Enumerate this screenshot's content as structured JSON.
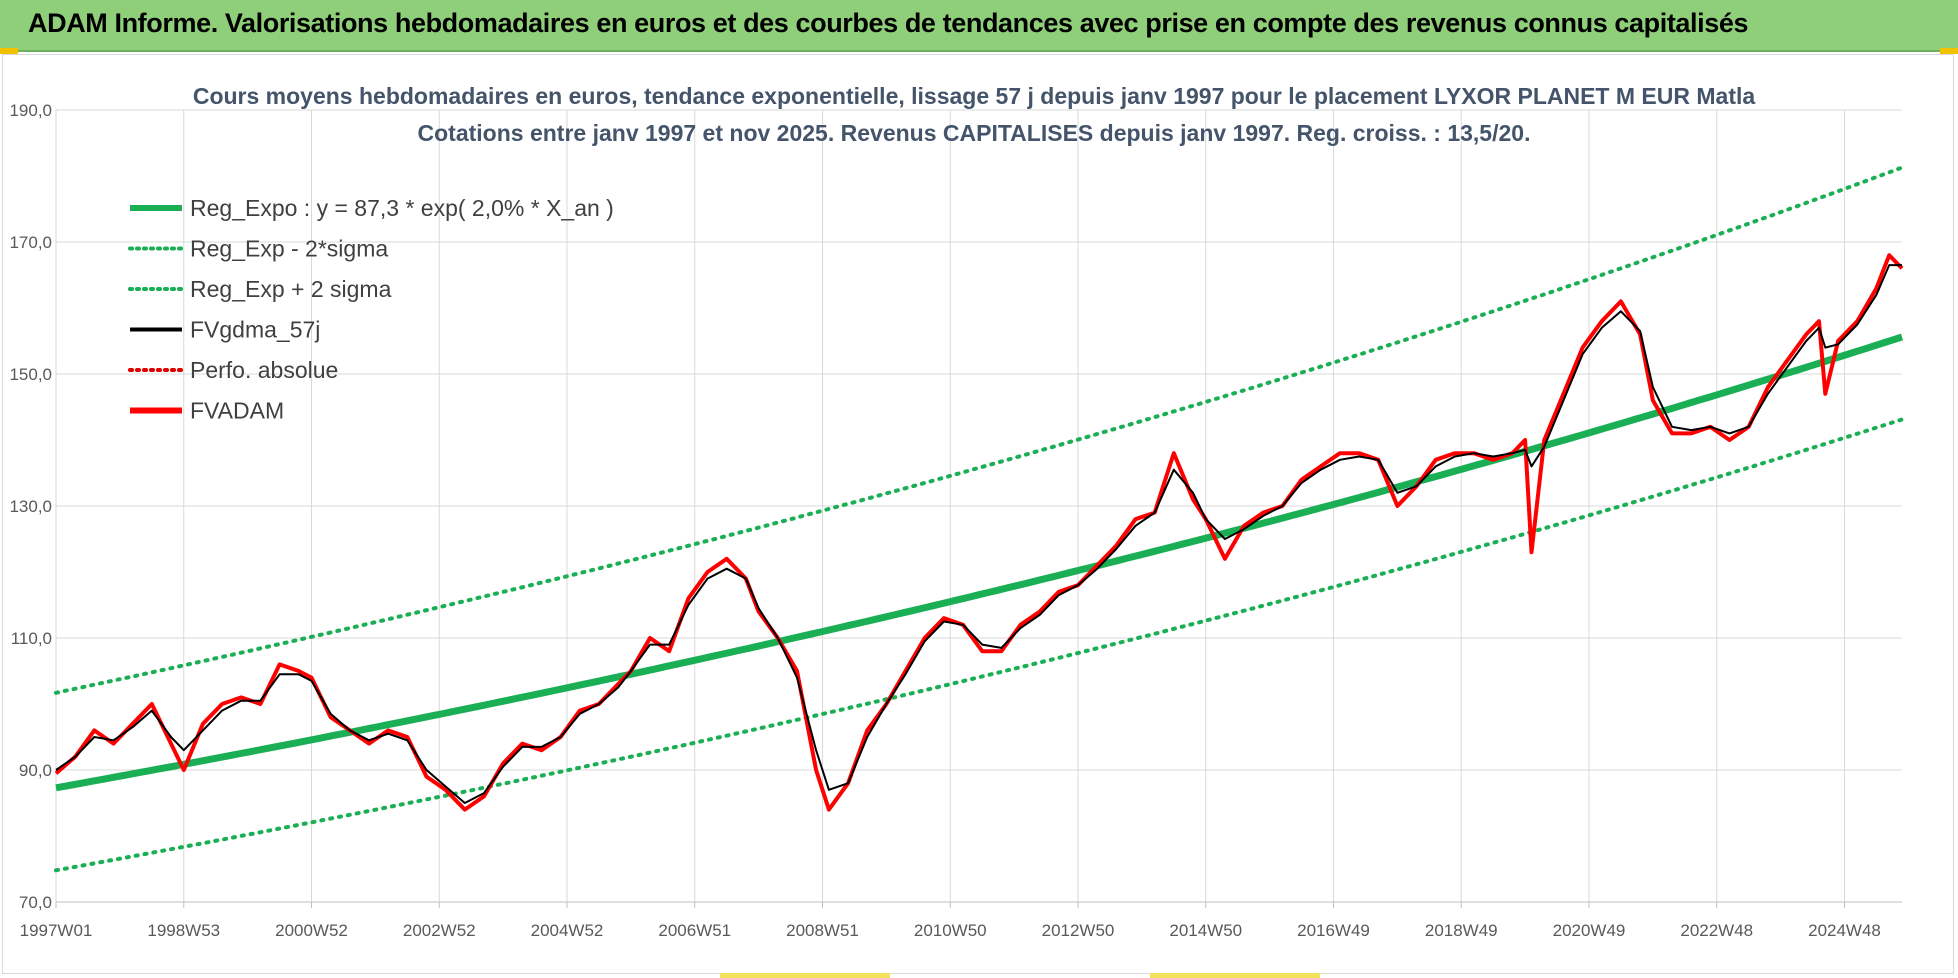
{
  "header": {
    "title": "ADAM Informe. Valorisations hebdomadaires en euros et des courbes de tendances avec prise en compte des revenus connus capitalisés"
  },
  "colors": {
    "banner": "#8fcf7a",
    "reg_expo": "#1aaf54",
    "sigma_lines": "#1aaf54",
    "fvgdma": "#000000",
    "perfo": "#e00000",
    "fvadam": "#ff0000",
    "grid": "#d9d9d9"
  },
  "chart_data": {
    "type": "line",
    "title": "Cours moyens hebdomadaires en euros, tendance exponentielle, lissage 57 j depuis janv 1997 pour le placement LYXOR PLANET M EUR Matla",
    "subtitle": "Cotations entre janv 1997 et nov 2025. Revenus CAPITALISES depuis janv 1997. Reg. croiss. : 13,5/20.",
    "xlabel": "",
    "ylabel": "",
    "ylim": [
      70,
      190
    ],
    "yticks": [
      "70,0",
      "90,0",
      "110,0",
      "130,0",
      "150,0",
      "170,0",
      "190,0"
    ],
    "ytick_values": [
      70,
      90,
      110,
      130,
      150,
      170,
      190
    ],
    "xlim": [
      1997.0,
      2025.9
    ],
    "xticks": [
      "1997W01",
      "1998W53",
      "2000W52",
      "2002W52",
      "2004W52",
      "2006W51",
      "2008W51",
      "2010W50",
      "2012W50",
      "2014W50",
      "2016W49",
      "2018W49",
      "2020W49",
      "2022W48",
      "2024W48"
    ],
    "xtick_values": [
      1997.0,
      1999.0,
      2001.0,
      2003.0,
      2005.0,
      2007.0,
      2009.0,
      2011.0,
      2013.0,
      2015.0,
      2017.0,
      2019.0,
      2021.0,
      2023.0,
      2025.0
    ],
    "grid": "both",
    "legend_position": "top-left",
    "legend": [
      {
        "label": "Reg_Expo : y = 87,3 * exp( 2,0% *  X_an )",
        "style": "solid-thick",
        "color": "#1aaf54"
      },
      {
        "label": "Reg_Exp - 2*sigma",
        "style": "dotted",
        "color": "#1aaf54"
      },
      {
        "label": "Reg_Exp + 2 sigma",
        "style": "dotted",
        "color": "#1aaf54"
      },
      {
        "label": "FVgdma_57j",
        "style": "solid",
        "color": "#000000"
      },
      {
        "label": "Perfo. absolue",
        "style": "dotted",
        "color": "#e00000"
      },
      {
        "label": "FVADAM",
        "style": "solid-thick",
        "color": "#ff0000"
      }
    ],
    "trend": {
      "base": 87.3,
      "rate": 0.02,
      "start": 1997.0,
      "sigma_offset_low": -12.5,
      "sigma_factor_up": 1.165
    },
    "series": [
      {
        "name": "FVADAM",
        "x": [
          1997.0,
          1997.3,
          1997.6,
          1997.9,
          1998.2,
          1998.5,
          1998.8,
          1999.0,
          1999.3,
          1999.6,
          1999.9,
          2000.2,
          2000.5,
          2000.8,
          2001.0,
          2001.3,
          2001.6,
          2001.9,
          2002.2,
          2002.5,
          2002.8,
          2003.1,
          2003.4,
          2003.7,
          2004.0,
          2004.3,
          2004.6,
          2004.9,
          2005.2,
          2005.5,
          2005.8,
          2006.0,
          2006.3,
          2006.6,
          2006.9,
          2007.2,
          2007.5,
          2007.8,
          2008.0,
          2008.3,
          2008.6,
          2008.9,
          2009.1,
          2009.4,
          2009.7,
          2010.0,
          2010.3,
          2010.6,
          2010.9,
          2011.2,
          2011.5,
          2011.8,
          2012.1,
          2012.4,
          2012.7,
          2013.0,
          2013.3,
          2013.6,
          2013.9,
          2014.2,
          2014.5,
          2014.8,
          2015.0,
          2015.3,
          2015.6,
          2015.9,
          2016.2,
          2016.5,
          2016.8,
          2017.1,
          2017.4,
          2017.7,
          2018.0,
          2018.3,
          2018.6,
          2018.9,
          2019.2,
          2019.5,
          2019.8,
          2020.0,
          2020.1,
          2020.3,
          2020.6,
          2020.9,
          2021.2,
          2021.5,
          2021.8,
          2022.0,
          2022.3,
          2022.6,
          2022.9,
          2023.2,
          2023.5,
          2023.8,
          2024.1,
          2024.4,
          2024.6,
          2024.7,
          2024.9,
          2025.2,
          2025.5,
          2025.7,
          2025.9
        ],
        "y": [
          89.5,
          92.0,
          96.0,
          94.0,
          97.0,
          100.0,
          94.0,
          90.0,
          97.0,
          100.0,
          101.0,
          100.0,
          106.0,
          105.0,
          104.0,
          98.0,
          96.0,
          94.0,
          96.0,
          95.0,
          89.0,
          87.0,
          84.0,
          86.0,
          91.0,
          94.0,
          93.0,
          95.0,
          99.0,
          100.0,
          103.0,
          105.0,
          110.0,
          108.0,
          116.0,
          120.0,
          122.0,
          119.0,
          114.0,
          110.0,
          105.0,
          90.0,
          84.0,
          88.0,
          96.0,
          100.0,
          105.0,
          110.0,
          113.0,
          112.0,
          108.0,
          108.0,
          112.0,
          114.0,
          117.0,
          118.0,
          121.0,
          124.0,
          128.0,
          129.0,
          138.0,
          131.0,
          128.0,
          122.0,
          127.0,
          129.0,
          130.0,
          134.0,
          136.0,
          138.0,
          138.0,
          137.0,
          130.0,
          133.0,
          137.0,
          138.0,
          138.0,
          137.0,
          138.0,
          140.0,
          123.0,
          140.0,
          147.0,
          154.0,
          158.0,
          161.0,
          156.0,
          146.0,
          141.0,
          141.0,
          142.0,
          140.0,
          142.0,
          148.0,
          152.0,
          156.0,
          158.0,
          147.0,
          155.0,
          158.0,
          163.0,
          168.0,
          166.0
        ]
      },
      {
        "name": "FVgdma_57j",
        "x": [
          1997.0,
          1997.3,
          1997.6,
          1997.9,
          1998.2,
          1998.5,
          1998.8,
          1999.0,
          1999.3,
          1999.6,
          1999.9,
          2000.2,
          2000.5,
          2000.8,
          2001.0,
          2001.3,
          2001.6,
          2001.9,
          2002.2,
          2002.5,
          2002.8,
          2003.1,
          2003.4,
          2003.7,
          2004.0,
          2004.3,
          2004.6,
          2004.9,
          2005.2,
          2005.5,
          2005.8,
          2006.0,
          2006.3,
          2006.6,
          2006.9,
          2007.2,
          2007.5,
          2007.8,
          2008.0,
          2008.3,
          2008.6,
          2008.9,
          2009.1,
          2009.4,
          2009.7,
          2010.0,
          2010.3,
          2010.6,
          2010.9,
          2011.2,
          2011.5,
          2011.8,
          2012.1,
          2012.4,
          2012.7,
          2013.0,
          2013.3,
          2013.6,
          2013.9,
          2014.2,
          2014.5,
          2014.8,
          2015.0,
          2015.3,
          2015.6,
          2015.9,
          2016.2,
          2016.5,
          2016.8,
          2017.1,
          2017.4,
          2017.7,
          2018.0,
          2018.3,
          2018.6,
          2018.9,
          2019.2,
          2019.5,
          2019.8,
          2020.0,
          2020.1,
          2020.3,
          2020.6,
          2020.9,
          2021.2,
          2021.5,
          2021.8,
          2022.0,
          2022.3,
          2022.6,
          2022.9,
          2023.2,
          2023.5,
          2023.8,
          2024.1,
          2024.4,
          2024.6,
          2024.7,
          2024.9,
          2025.2,
          2025.5,
          2025.7,
          2025.9
        ],
        "y": [
          90.0,
          92.0,
          95.0,
          94.5,
          96.5,
          99.0,
          95.0,
          93.0,
          96.0,
          99.0,
          100.5,
          100.5,
          104.5,
          104.5,
          103.5,
          98.5,
          96.0,
          94.5,
          95.5,
          94.5,
          90.0,
          87.5,
          85.0,
          86.5,
          90.5,
          93.5,
          93.5,
          95.0,
          98.5,
          100.0,
          102.5,
          105.0,
          109.0,
          109.0,
          115.0,
          119.0,
          120.5,
          119.0,
          114.5,
          110.0,
          104.0,
          93.0,
          87.0,
          88.0,
          95.0,
          100.0,
          104.5,
          109.5,
          112.5,
          112.0,
          109.0,
          108.5,
          111.5,
          113.5,
          116.5,
          118.0,
          120.5,
          123.5,
          127.0,
          129.0,
          135.5,
          132.0,
          128.0,
          125.0,
          126.5,
          128.5,
          130.0,
          133.5,
          135.5,
          137.0,
          137.5,
          137.0,
          132.0,
          133.0,
          136.0,
          137.5,
          138.0,
          137.5,
          138.0,
          138.5,
          136.0,
          139.0,
          146.0,
          153.0,
          157.0,
          159.5,
          156.5,
          148.0,
          142.0,
          141.5,
          142.0,
          141.0,
          142.0,
          147.0,
          151.0,
          155.0,
          157.0,
          154.0,
          154.5,
          157.5,
          162.0,
          166.5,
          166.5
        ]
      }
    ]
  }
}
